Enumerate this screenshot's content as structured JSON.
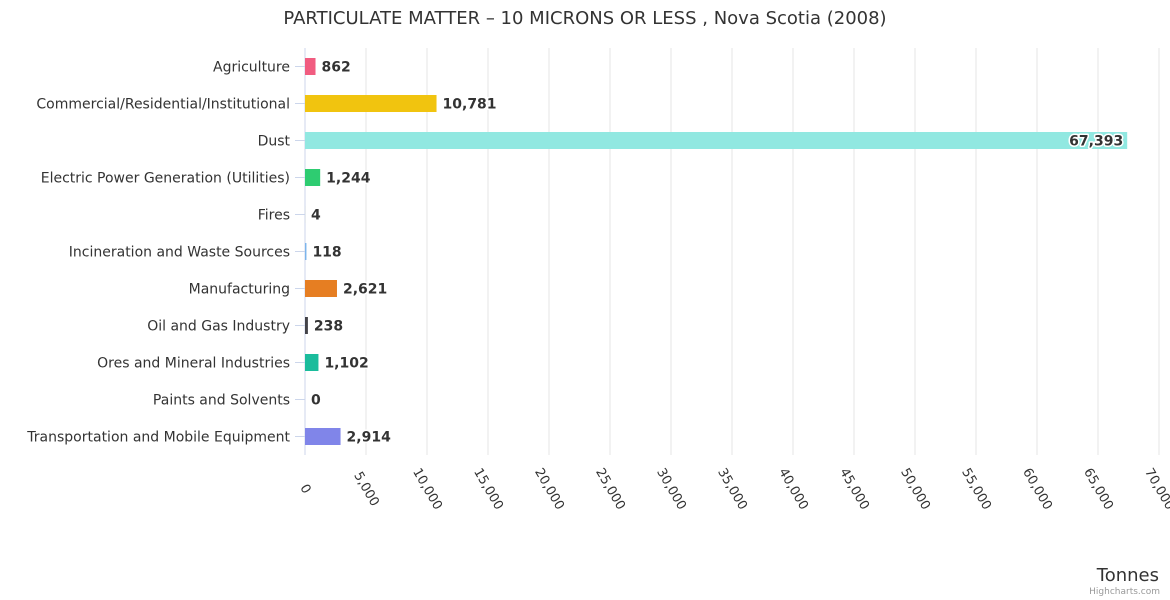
{
  "chart_data": {
    "type": "bar",
    "orientation": "horizontal",
    "title": "PARTICULATE MATTER – 10 MICRONS OR LESS , Nova Scotia (2008)",
    "xlabel": "Tonnes",
    "ylabel": "",
    "xlim": [
      0,
      70000
    ],
    "tick_values": [
      0,
      5000,
      10000,
      15000,
      20000,
      25000,
      30000,
      35000,
      40000,
      45000,
      50000,
      55000,
      60000,
      65000,
      70000
    ],
    "tick_labels": [
      "0",
      "5,000",
      "10,000",
      "15,000",
      "20,000",
      "25,000",
      "30,000",
      "35,000",
      "40,000",
      "45,000",
      "50,000",
      "55,000",
      "60,000",
      "65,000",
      "70,000"
    ],
    "categories": [
      "Agriculture",
      "Commercial/Residential/Institutional",
      "Dust",
      "Electric Power Generation (Utilities)",
      "Fires",
      "Incineration and Waste Sources",
      "Manufacturing",
      "Oil and Gas Industry",
      "Ores and Mineral Industries",
      "Paints and Solvents",
      "Transportation and Mobile Equipment"
    ],
    "values": [
      862,
      10781,
      67393,
      1244,
      4,
      118,
      2621,
      238,
      1102,
      0,
      2914
    ],
    "value_labels": [
      "862",
      "10,781",
      "67,393",
      "1,244",
      "4",
      "118",
      "2,621",
      "238",
      "1,102",
      "0",
      "2,914"
    ],
    "colors": [
      "#f15c80",
      "#f1c40f",
      "#91e8e1",
      "#2ecc71",
      "#e4d354",
      "#7cb5ec",
      "#e67e22",
      "#434348",
      "#1abc9c",
      "#f7a35c",
      "#8085e9"
    ],
    "grid": true,
    "legend": "none"
  },
  "credits": "Highcharts.com"
}
